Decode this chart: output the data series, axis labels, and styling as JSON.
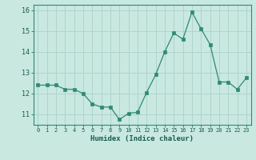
{
  "x": [
    0,
    1,
    2,
    3,
    4,
    5,
    6,
    7,
    8,
    9,
    10,
    11,
    12,
    13,
    14,
    15,
    16,
    17,
    18,
    19,
    20,
    21,
    22,
    23
  ],
  "y": [
    12.4,
    12.4,
    12.4,
    12.2,
    12.2,
    12.0,
    11.5,
    11.35,
    11.35,
    10.75,
    11.05,
    11.1,
    12.05,
    12.9,
    14.0,
    14.9,
    14.6,
    15.9,
    15.1,
    14.35,
    12.55,
    12.55,
    12.2,
    12.75
  ],
  "xlabel": "Humidex (Indice chaleur)",
  "xlim": [
    -0.5,
    23.5
  ],
  "ylim": [
    10.5,
    16.25
  ],
  "yticks": [
    11,
    12,
    13,
    14,
    15,
    16
  ],
  "xticks": [
    0,
    1,
    2,
    3,
    4,
    5,
    6,
    7,
    8,
    9,
    10,
    11,
    12,
    13,
    14,
    15,
    16,
    17,
    18,
    19,
    20,
    21,
    22,
    23
  ],
  "line_color": "#2e8b74",
  "bg_color": "#c8e8e0",
  "grid_color": "#b0d4cc",
  "axis_color": "#2e8b74",
  "label_color": "#1a5c50",
  "tick_color": "#1a5c50"
}
